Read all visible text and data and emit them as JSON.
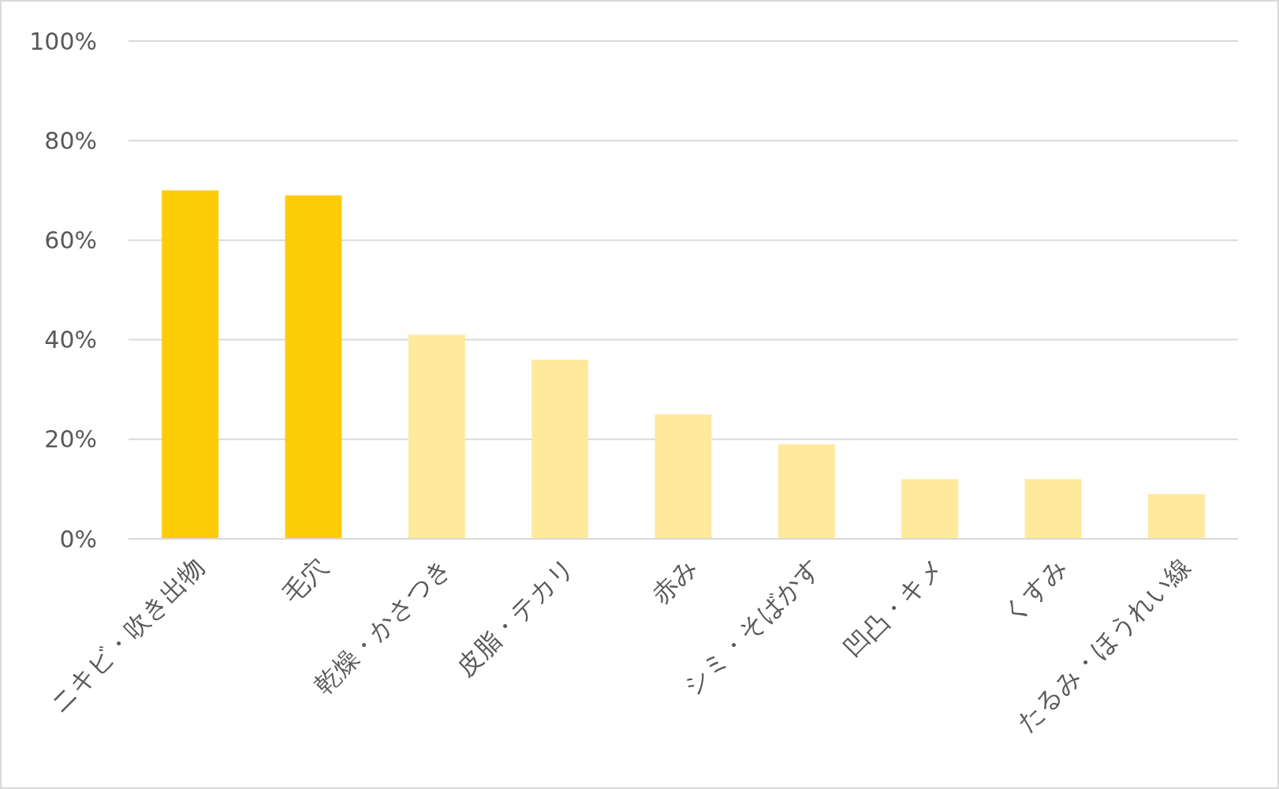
{
  "chart_data": {
    "type": "bar",
    "categories": [
      "ニキビ・吹き出物",
      "毛穴",
      "乾燥・かさつき",
      "皮脂・テカリ",
      "赤み",
      "シミ・そばかす",
      "凹凸・キメ",
      "くすみ",
      "たるみ・ほうれい線"
    ],
    "values": [
      70,
      69,
      41,
      36,
      25,
      19,
      12,
      12,
      9
    ],
    "colors": [
      "#ffcc0a",
      "#ffcc0a",
      "#ffe99c",
      "#ffe99c",
      "#ffe99c",
      "#ffe99c",
      "#ffe99c",
      "#ffe99c",
      "#ffe99c"
    ],
    "ylim": [
      0,
      100
    ],
    "yticks": [
      {
        "value": 0,
        "label": "0%"
      },
      {
        "value": 20,
        "label": "20%"
      },
      {
        "value": 40,
        "label": "40%"
      },
      {
        "value": 60,
        "label": "60%"
      },
      {
        "value": 80,
        "label": "80%"
      },
      {
        "value": 100,
        "label": "100%"
      }
    ],
    "grid": "y"
  }
}
